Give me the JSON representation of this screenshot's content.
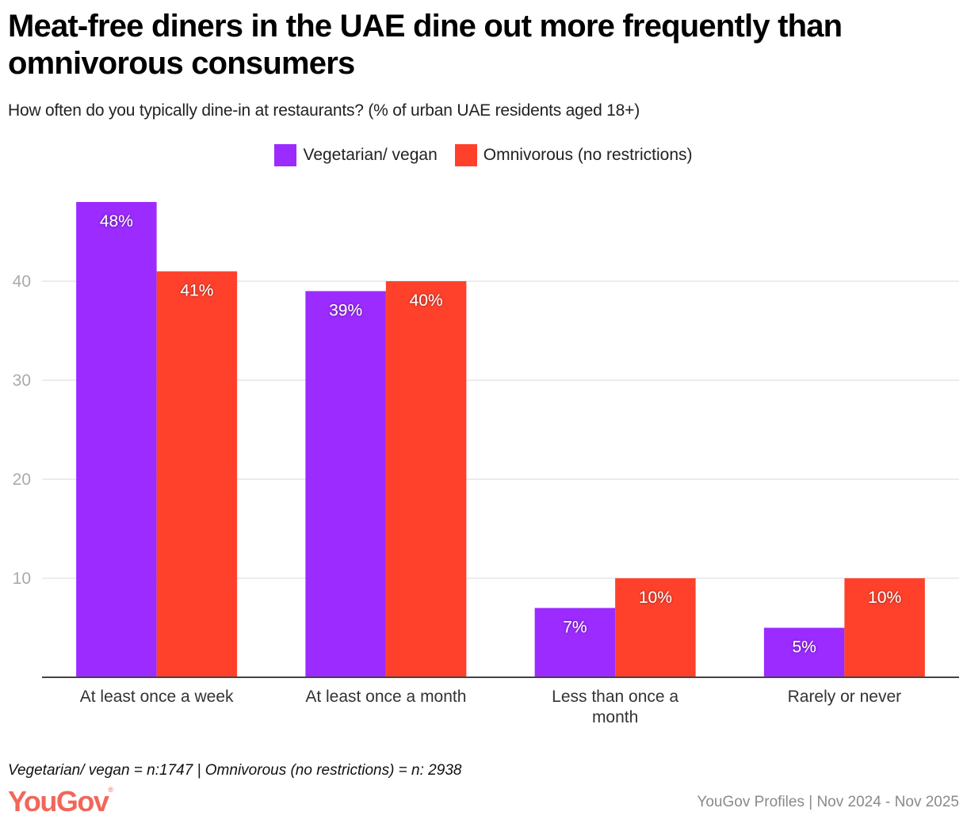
{
  "header": {
    "title": "Meat-free diners in the UAE dine out more frequently than omnivorous consumers",
    "subtitle": "How often do you typically dine-in at restaurants? (% of urban UAE residents aged 18+)"
  },
  "footer": {
    "note": "Vegetarian/ vegan = n:1747 | Omnivorous (no restrictions) = n: 2938",
    "logo_text": "YouGov",
    "logo_mark": "®",
    "source": "YouGov Profiles | Nov 2024 - Nov 2025"
  },
  "colors": {
    "vegetarian": "#9b2bff",
    "omnivorous": "#ff412c",
    "grid": "#e6e6e6",
    "axis": "#444444",
    "tick": "#aaaaaa",
    "category": "#333333"
  },
  "chart_data": {
    "type": "bar",
    "title": "Meat-free diners in the UAE dine out more frequently than omnivorous consumers",
    "subtitle": "How often do you typically dine-in at restaurants? (% of urban UAE residents aged 18+)",
    "xlabel": "",
    "ylabel": "",
    "ylim": [
      0,
      50
    ],
    "yticks": [
      10,
      20,
      30,
      40
    ],
    "grid": true,
    "legend_position": "top-center",
    "categories": [
      [
        "At least once a week"
      ],
      [
        "At least once a month"
      ],
      [
        "Less than once a",
        "month"
      ],
      [
        "Rarely or never"
      ]
    ],
    "series": [
      {
        "name": "Vegetarian/ vegan",
        "color_key": "vegetarian",
        "values": [
          48,
          39,
          7,
          5
        ],
        "labels": [
          "48%",
          "39%",
          "7%",
          "5%"
        ]
      },
      {
        "name": "Omnivorous (no restrictions)",
        "color_key": "omnivorous",
        "values": [
          41,
          40,
          10,
          10
        ],
        "labels": [
          "41%",
          "40%",
          "10%",
          "10%"
        ]
      }
    ]
  }
}
